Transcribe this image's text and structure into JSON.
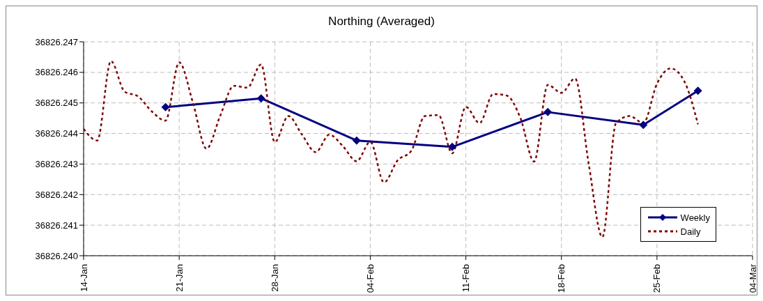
{
  "chart_data": {
    "type": "line",
    "title": "Northing (Averaged)",
    "xlim": [
      "--01-14",
      "--03-04"
    ],
    "xticks": [
      {
        "value": "--01-14",
        "label": "14-Jan"
      },
      {
        "value": "--01-21",
        "label": "21-Jan"
      },
      {
        "value": "--01-28",
        "label": "28-Jan"
      },
      {
        "value": "--02-04",
        "label": "04-Feb"
      },
      {
        "value": "--02-11",
        "label": "11-Feb"
      },
      {
        "value": "--02-18",
        "label": "18-Feb"
      },
      {
        "value": "--02-25",
        "label": "25-Feb"
      },
      {
        "value": "--03-04",
        "label": "04-Mar"
      }
    ],
    "ylim": [
      36826.24,
      36826.247
    ],
    "yticks": [
      {
        "value": 36826.24,
        "label": "36826.240"
      },
      36826.241,
      36826.242,
      36826.243,
      36826.244,
      36826.245,
      36826.246,
      36826.247
    ],
    "grid": true,
    "legend": "bottom right",
    "series": [
      {
        "name": "Weekly",
        "color": "#000080",
        "marker": "diamond",
        "line_style": "solid",
        "x": [
          "--01-20",
          "--01-27",
          "--02-03",
          "--02-10",
          "--02-17",
          "--02-24",
          "--02-28"
        ],
        "values": [
          36826.24486,
          36826.24515,
          36826.24377,
          36826.24356,
          36826.2447,
          36826.24428,
          36826.2454
        ]
      },
      {
        "name": "Daily",
        "color": "#800000",
        "marker": "none",
        "line_style": "dashed",
        "x": [
          "--01-14",
          "--01-15",
          "--01-16",
          "--01-17",
          "--01-18",
          "--01-19",
          "--01-20",
          "--01-21",
          "--01-22",
          "--01-23",
          "--01-24",
          "--01-25",
          "--01-26",
          "--01-27",
          "--01-28",
          "--01-29",
          "--01-30",
          "--01-31",
          "--02-01",
          "--02-02",
          "--02-03",
          "--02-04",
          "--02-05",
          "--02-06",
          "--02-07",
          "--02-08",
          "--02-09",
          "--02-10",
          "--02-11",
          "--02-12",
          "--02-13",
          "--02-14",
          "--02-15",
          "--02-16",
          "--02-17",
          "--02-18",
          "--02-19",
          "--02-20",
          "--02-21",
          "--02-22",
          "--02-23",
          "--02-24",
          "--02-25",
          "--02-26",
          "--02-27",
          "--02-28"
        ],
        "values": [
          36826.24415,
          36826.24377,
          36826.24637,
          36826.24537,
          36826.24521,
          36826.24472,
          36826.24442,
          36826.24633,
          36826.24502,
          36826.2435,
          36826.24457,
          36826.24556,
          36826.2455,
          36826.24626,
          36826.24372,
          36826.24457,
          36826.24396,
          36826.24339,
          36826.24396,
          36826.24358,
          36826.24309,
          36826.24373,
          36826.2424,
          36826.24312,
          36826.24343,
          36826.24457,
          36826.2446,
          36826.24335,
          36826.24487,
          36826.24434,
          36826.24529,
          36826.24524,
          36826.2445,
          36826.24308,
          36826.24559,
          36826.24533,
          36826.2458,
          36826.243,
          36826.24061,
          36826.24434,
          36826.24457,
          36826.24434,
          36826.24563,
          36826.24613,
          36826.24571,
          36826.2443
        ]
      }
    ]
  }
}
